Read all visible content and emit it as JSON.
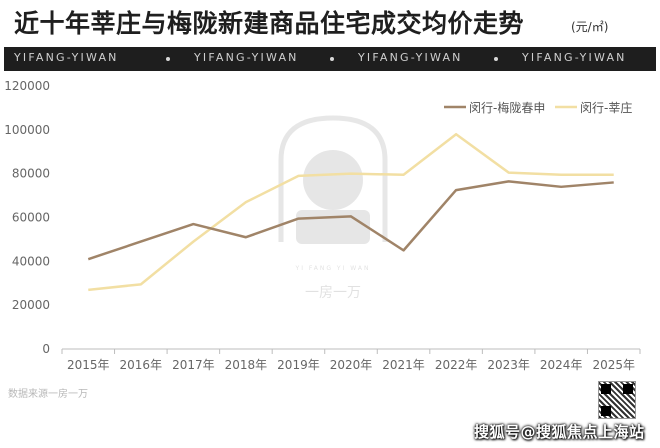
{
  "header": {
    "title": "近十年莘庄与梅陇新建商品住宅成交均价走势",
    "unit": "(元/㎡)"
  },
  "banner": {
    "items": [
      "YIFANG-YIWAN",
      "YIFANG-YIWAN",
      "YIFANG-YIWAN",
      "YIFANG-YIWAN"
    ]
  },
  "watermark": {
    "small_text": "YI FANG YI WAN",
    "text": "一房一万"
  },
  "source_note": "数据来源一房一万",
  "footer_text": "搜狐号@搜狐焦点上海站",
  "colors": {
    "meilong": "#a08468",
    "xinzhuang": "#f2dfa3",
    "axis": "#bdbdbd",
    "tick_text": "#666666"
  },
  "chart_data": {
    "type": "line",
    "title": "近十年莘庄与梅陇新建商品住宅成交均价走势",
    "unit": "(元/㎡)",
    "categories": [
      "2015年",
      "2016年",
      "2017年",
      "2018年",
      "2019年",
      "2020年",
      "2021年",
      "2022年",
      "2023年",
      "2024年",
      "2025年"
    ],
    "series": [
      {
        "name": "闵行-梅陇春申",
        "color": "#a08468",
        "values": [
          41000,
          49000,
          57000,
          51000,
          59500,
          60500,
          45000,
          72500,
          76500,
          74000,
          76000
        ]
      },
      {
        "name": "闵行-莘庄",
        "color": "#f2dfa3",
        "values": [
          27000,
          29500,
          49000,
          67000,
          79000,
          80000,
          79500,
          98000,
          80500,
          79500,
          79500
        ]
      }
    ],
    "ylim": [
      0,
      120000
    ],
    "yticks": [
      "0",
      "20000",
      "40000",
      "60000",
      "80000",
      "100000",
      "120000"
    ],
    "ytick_values": [
      0,
      20000,
      40000,
      60000,
      80000,
      100000,
      120000
    ],
    "xlabel": "",
    "ylabel": "",
    "grid": false,
    "legend": "top-right"
  }
}
